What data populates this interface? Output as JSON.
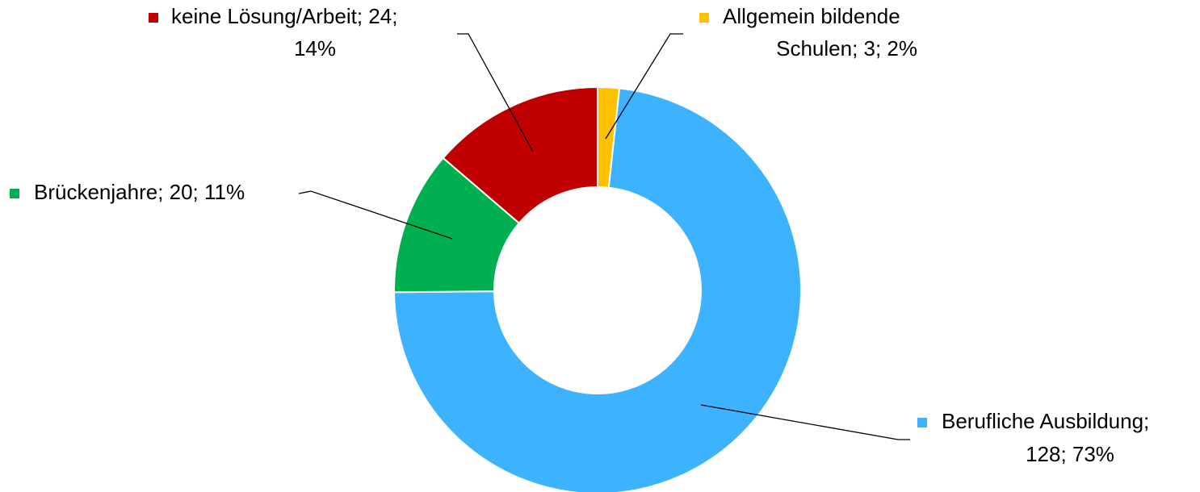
{
  "chart_data": {
    "type": "donut",
    "values": [
      3,
      128,
      20,
      24
    ],
    "colors": [
      "#ffc000",
      "#3db3ff",
      "#00b050",
      "#c00000"
    ],
    "labels": [
      [
        "Allgemein bildende",
        "Schulen; 3; 2%"
      ],
      [
        "Berufliche Ausbildung;",
        "128; 73%"
      ],
      [
        "Brückenjahre; 20; 11%"
      ],
      [
        "keine Lösung/Arbeit; 24;",
        "14%"
      ]
    ]
  }
}
